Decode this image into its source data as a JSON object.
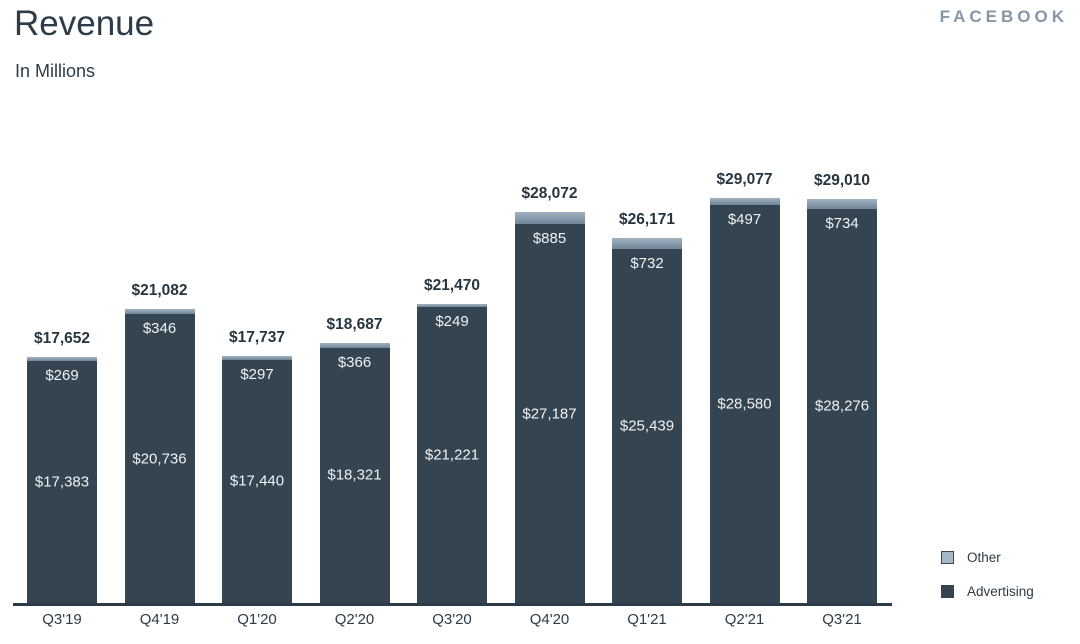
{
  "header": {
    "title": "Revenue",
    "subtitle": "In Millions",
    "brand": "FACEBOOK"
  },
  "legend": {
    "position": "bottom-right",
    "items": [
      {
        "label": "Other",
        "key": "other"
      },
      {
        "label": "Advertising",
        "key": "advertising"
      }
    ]
  },
  "colors": {
    "advertising_bar": "#344450",
    "other_segment": "#7d92a3",
    "other_legend_swatch": "#a7b8c4",
    "legend_swatch_border": "#3a4956",
    "axis_line": "#2d3b47",
    "heading_text": "#2c3c48",
    "total_label_text": "#26353f",
    "inside_label_text": "#eef2f4",
    "brand_text": "#8496a9",
    "background": "#ffffff"
  },
  "chart_data": {
    "type": "bar",
    "stacked": true,
    "title": "Revenue",
    "subtitle": "In Millions",
    "unit": "USD millions",
    "value_prefix": "$",
    "categories": [
      "Q3'19",
      "Q4'19",
      "Q1'20",
      "Q2'20",
      "Q3'20",
      "Q4'20",
      "Q1'21",
      "Q2'21",
      "Q3'21"
    ],
    "series": [
      {
        "name": "Advertising",
        "values": [
          17383,
          20736,
          17440,
          18321,
          21221,
          27187,
          25439,
          28580,
          28276
        ]
      },
      {
        "name": "Other",
        "values": [
          269,
          346,
          297,
          366,
          249,
          885,
          732,
          497,
          734
        ]
      }
    ],
    "totals": [
      17652,
      21082,
      17737,
      18687,
      21470,
      28072,
      26171,
      29077,
      29010
    ],
    "xlabel": "",
    "ylabel": "",
    "ylim": [
      0,
      30000
    ],
    "grid": false,
    "y_axis_visible": false,
    "legend_position": "bottom-right"
  }
}
